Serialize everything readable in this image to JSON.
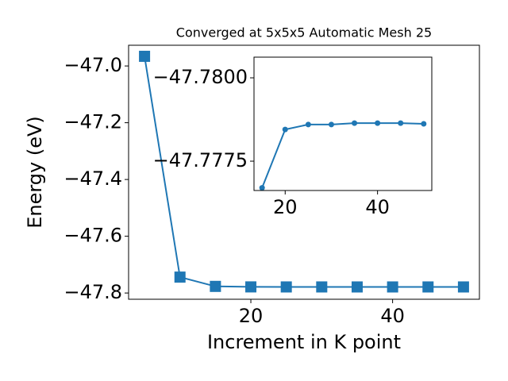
{
  "chart_data": [
    {
      "type": "line",
      "title": "Converged at 5x5x5 Automatic Mesh 25",
      "x_label": "Increment in K point",
      "y_label": "Energy (eV)",
      "x": [
        5,
        10,
        15,
        20,
        25,
        30,
        35,
        40,
        45,
        50
      ],
      "series": [
        {
          "color": "#1f77b4",
          "marker": "square",
          "values": [
            -46.966,
            -47.744,
            -47.7767,
            -47.77845,
            -47.7786,
            -47.7786,
            -47.77864,
            -47.77864,
            -47.77864,
            -47.77862
          ]
        }
      ],
      "xlim": [
        2.75,
        52.25
      ],
      "ylim": [
        -47.822,
        -46.927
      ],
      "xticks": [
        20,
        40
      ],
      "yticks": [
        {
          "value": -47.0,
          "label": "−47.0"
        },
        {
          "value": -47.2,
          "label": "−47.2"
        },
        {
          "value": -47.4,
          "label": "−47.4"
        },
        {
          "value": -47.6,
          "label": "−47.6"
        },
        {
          "value": -47.8,
          "label": "−47.8"
        }
      ]
    },
    {
      "type": "line",
      "x": [
        15,
        20,
        25,
        30,
        35,
        40,
        45,
        50
      ],
      "series": [
        {
          "color": "#1f77b4",
          "marker": "circle",
          "values": [
            -47.7767,
            -47.77845,
            -47.7786,
            -47.7786,
            -47.77864,
            -47.77864,
            -47.77864,
            -47.77862
          ]
        }
      ],
      "xlim": [
        13.25,
        51.75
      ],
      "ylim": [
        -47.77662,
        -47.78062
      ],
      "xticks": [
        20,
        40
      ],
      "yticks": [
        {
          "value": -47.78,
          "label": "−47.7800"
        },
        {
          "value": -47.7775,
          "label": "−47.7775"
        }
      ]
    }
  ]
}
